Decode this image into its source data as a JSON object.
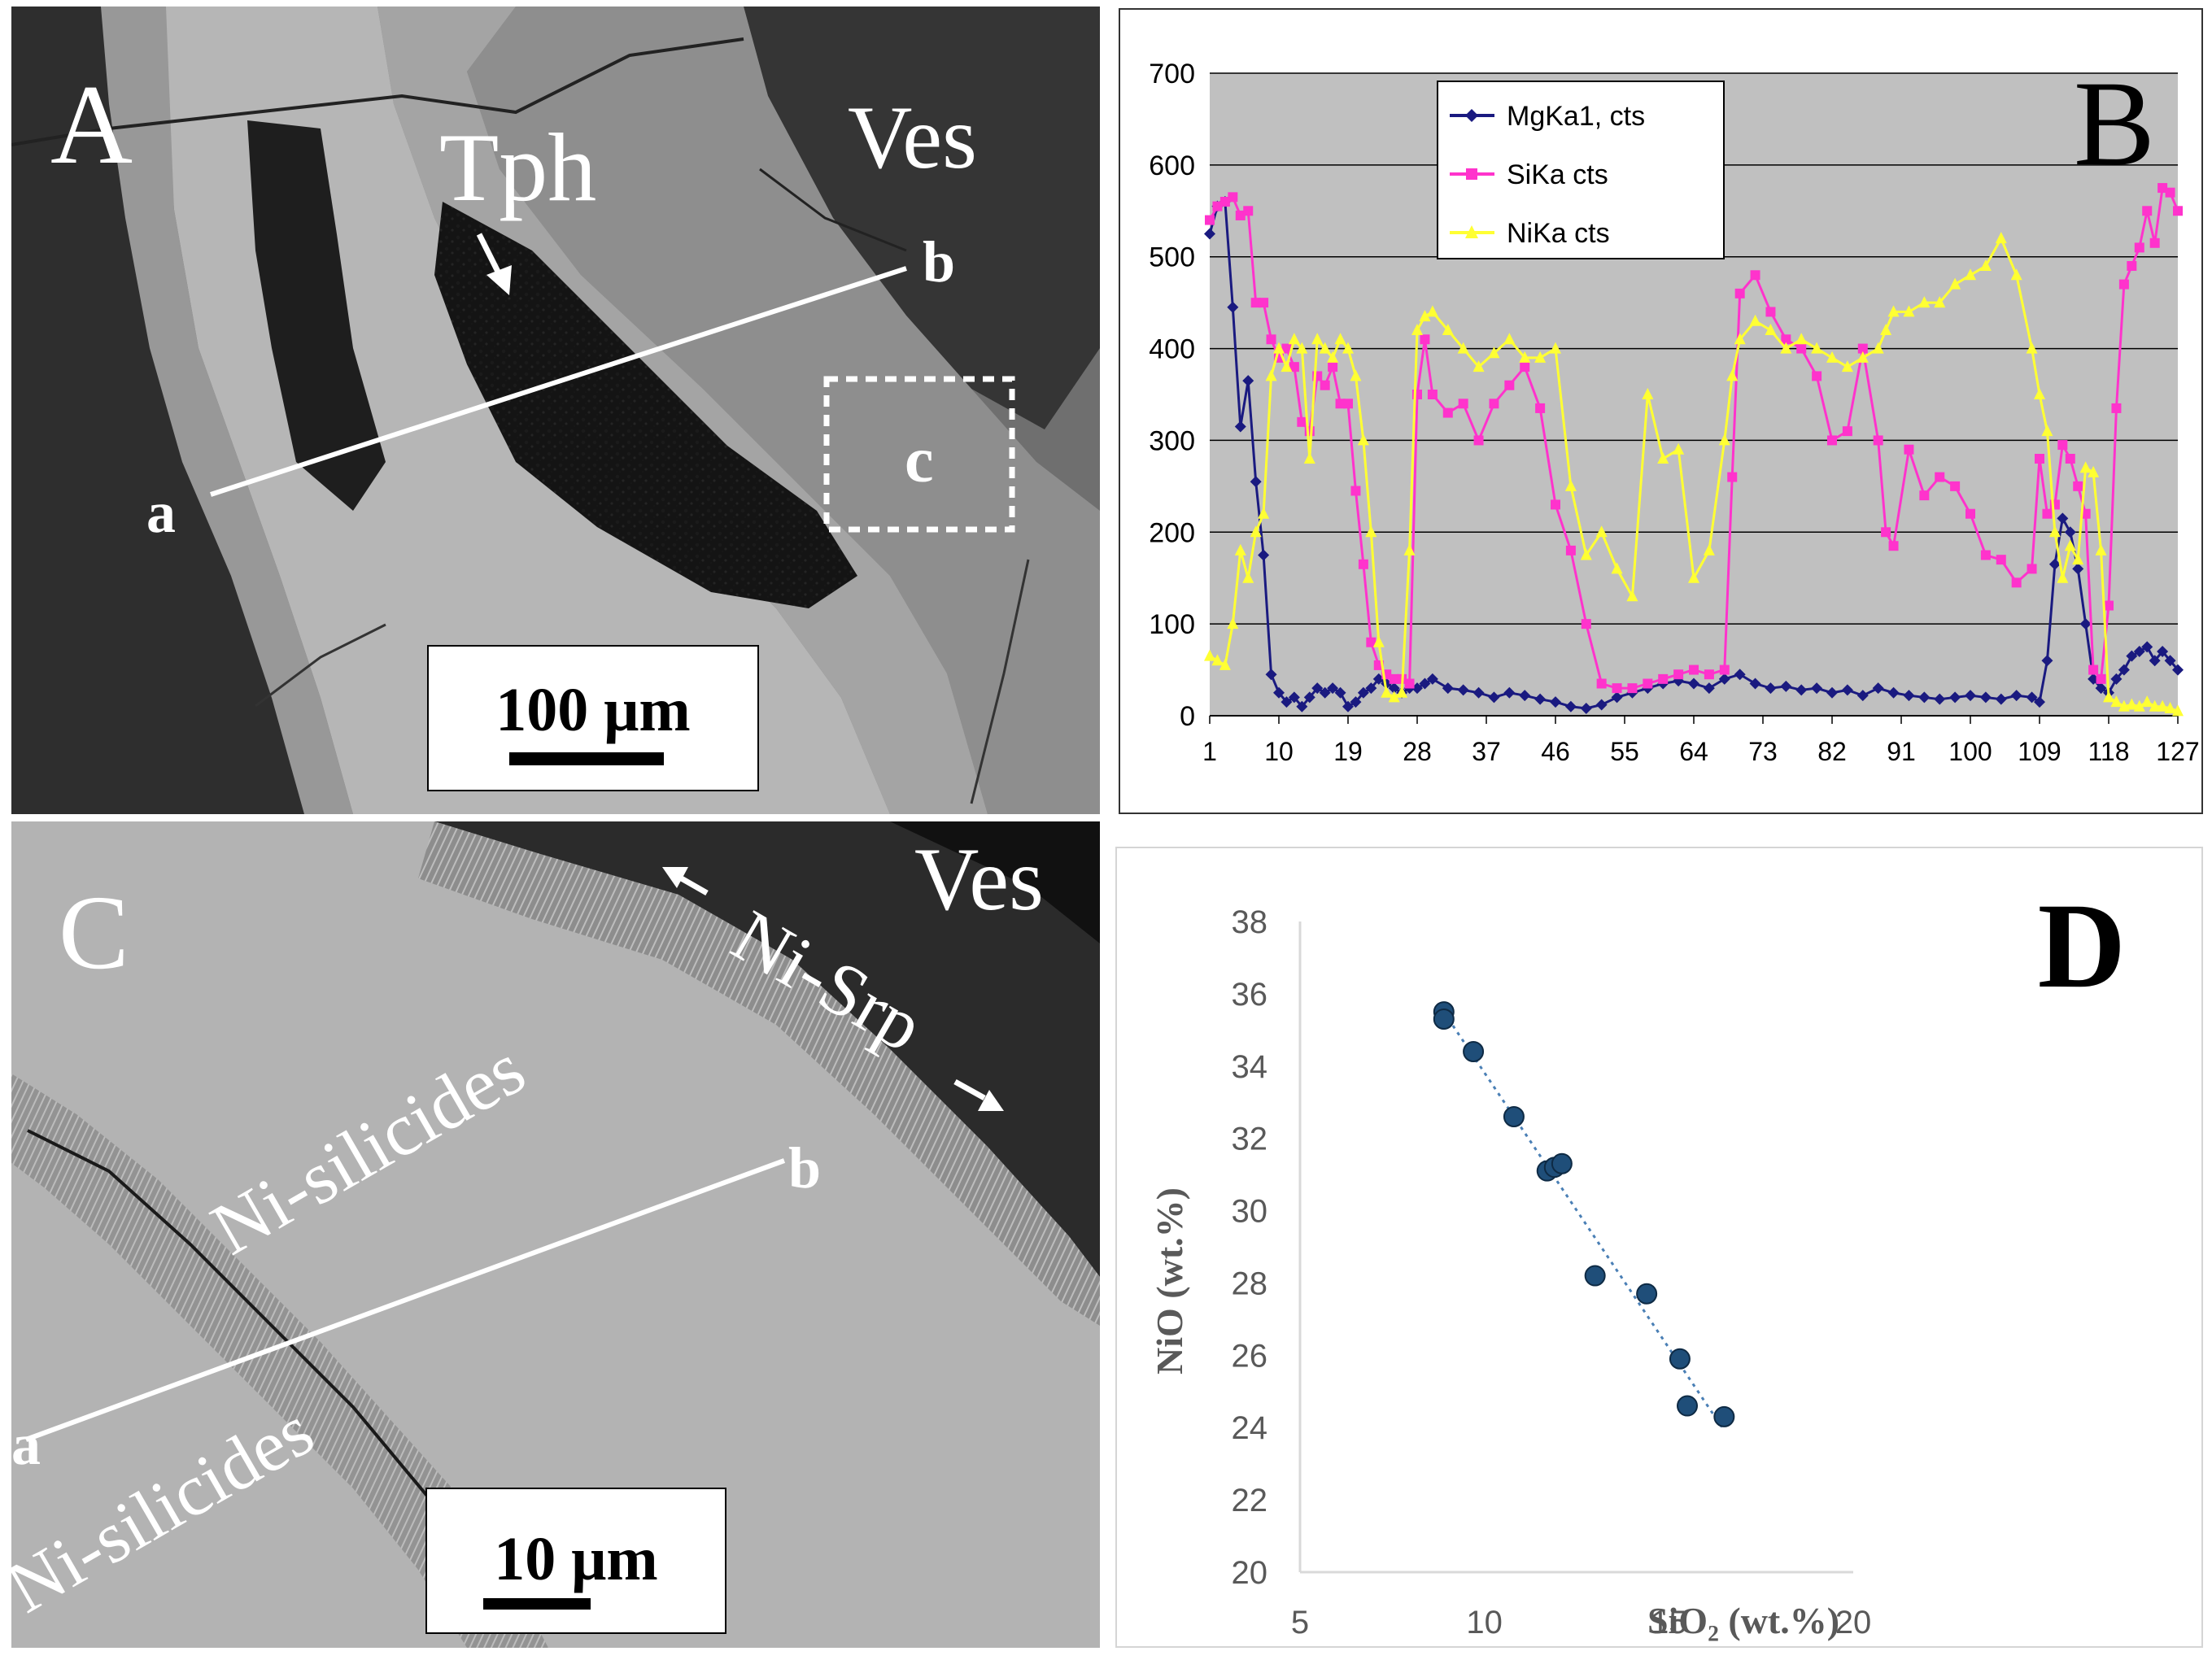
{
  "panel_a": {
    "letter": "A",
    "labels": {
      "tph": "Tph",
      "ves": "Ves",
      "a": "a",
      "b": "b",
      "c": "c"
    },
    "scale_bar": "100 μm"
  },
  "panel_c": {
    "letter": "C",
    "labels": {
      "ves": "Ves",
      "ni_srp": "Ni-Srp",
      "ni_silicides_upper": "Ni-silicides",
      "ni_silicides_lower": "Ni-silicides",
      "a": "a",
      "b": "b"
    },
    "scale_bar": "10 μm"
  },
  "colors": {
    "mg": "#1a1a80",
    "si": "#ff33cc",
    "ni": "#ffff33",
    "plot_bg": "#c0c0c0",
    "scatter_point": "#1f4e79",
    "trend": "#4a7fb5"
  },
  "chart_data": [
    {
      "panel": "B",
      "type": "line",
      "ylim": [
        0,
        700
      ],
      "yticks": [
        0,
        100,
        200,
        300,
        400,
        500,
        600,
        700
      ],
      "xlim": [
        1,
        127
      ],
      "xticks": [
        1,
        10,
        19,
        28,
        37,
        46,
        55,
        64,
        73,
        82,
        91,
        100,
        109,
        118,
        127
      ],
      "grid": true,
      "legend": "top-center",
      "series": [
        {
          "name": "MgKa1, cts",
          "color": "#1a1a80",
          "marker": "diamond",
          "x": [
            1,
            2,
            3,
            4,
            5,
            6,
            7,
            8,
            9,
            10,
            11,
            12,
            13,
            14,
            15,
            16,
            17,
            18,
            19,
            20,
            21,
            22,
            23,
            24,
            25,
            26,
            27,
            28,
            29,
            30,
            32,
            34,
            36,
            38,
            40,
            42,
            44,
            46,
            48,
            50,
            52,
            54,
            56,
            58,
            60,
            62,
            64,
            66,
            68,
            70,
            72,
            74,
            76,
            78,
            80,
            82,
            84,
            86,
            88,
            90,
            92,
            94,
            96,
            98,
            100,
            102,
            104,
            106,
            108,
            109,
            110,
            111,
            112,
            113,
            114,
            115,
            116,
            117,
            118,
            119,
            120,
            121,
            122,
            123,
            124,
            125,
            126,
            127
          ],
          "values": [
            525,
            555,
            560,
            445,
            315,
            365,
            255,
            175,
            45,
            25,
            15,
            20,
            10,
            20,
            30,
            25,
            30,
            25,
            10,
            15,
            25,
            30,
            40,
            35,
            30,
            25,
            30,
            30,
            35,
            40,
            30,
            28,
            25,
            20,
            25,
            22,
            18,
            15,
            10,
            8,
            12,
            20,
            25,
            30,
            35,
            38,
            35,
            30,
            40,
            45,
            35,
            30,
            32,
            28,
            30,
            25,
            28,
            22,
            30,
            25,
            22,
            20,
            18,
            20,
            22,
            20,
            18,
            22,
            20,
            15,
            60,
            165,
            215,
            200,
            160,
            100,
            40,
            30,
            25,
            40,
            50,
            65,
            70,
            75,
            60,
            70,
            60,
            50
          ]
        },
        {
          "name": "SiKa cts",
          "color": "#ff33cc",
          "marker": "square",
          "x": [
            1,
            2,
            3,
            4,
            5,
            6,
            7,
            8,
            9,
            10,
            11,
            12,
            13,
            14,
            15,
            16,
            17,
            18,
            19,
            20,
            21,
            22,
            23,
            24,
            25,
            26,
            27,
            28,
            29,
            30,
            32,
            34,
            36,
            38,
            40,
            42,
            44,
            46,
            48,
            50,
            52,
            54,
            56,
            58,
            60,
            62,
            64,
            66,
            68,
            69,
            70,
            72,
            74,
            76,
            78,
            80,
            82,
            84,
            86,
            88,
            89,
            90,
            92,
            94,
            96,
            98,
            100,
            102,
            104,
            106,
            108,
            109,
            110,
            111,
            112,
            113,
            114,
            115,
            116,
            117,
            118,
            119,
            120,
            121,
            122,
            123,
            124,
            125,
            126,
            127
          ],
          "values": [
            540,
            555,
            560,
            565,
            545,
            550,
            450,
            450,
            410,
            390,
            400,
            380,
            320,
            310,
            370,
            360,
            380,
            340,
            340,
            245,
            165,
            80,
            55,
            45,
            40,
            40,
            35,
            350,
            410,
            350,
            330,
            340,
            300,
            340,
            360,
            380,
            335,
            230,
            180,
            100,
            35,
            30,
            30,
            35,
            40,
            45,
            50,
            45,
            50,
            260,
            460,
            480,
            440,
            410,
            400,
            370,
            300,
            310,
            400,
            300,
            200,
            185,
            290,
            240,
            260,
            250,
            220,
            175,
            170,
            145,
            160,
            280,
            220,
            230,
            295,
            280,
            250,
            220,
            50,
            40,
            120,
            335,
            470,
            490,
            510,
            550,
            515,
            575,
            570,
            550
          ]
        },
        {
          "name": "NiKa cts",
          "color": "#ffff33",
          "marker": "triangle",
          "x": [
            1,
            2,
            3,
            4,
            5,
            6,
            7,
            8,
            9,
            10,
            11,
            12,
            13,
            14,
            15,
            16,
            17,
            18,
            19,
            20,
            21,
            22,
            23,
            24,
            25,
            26,
            27,
            28,
            29,
            30,
            32,
            34,
            36,
            38,
            40,
            42,
            44,
            46,
            48,
            50,
            52,
            54,
            56,
            58,
            60,
            62,
            64,
            66,
            68,
            69,
            70,
            72,
            74,
            76,
            78,
            80,
            82,
            84,
            86,
            88,
            89,
            90,
            92,
            94,
            96,
            98,
            100,
            102,
            104,
            106,
            108,
            109,
            110,
            111,
            112,
            113,
            114,
            115,
            116,
            117,
            118,
            119,
            120,
            121,
            122,
            123,
            124,
            125,
            126,
            127
          ],
          "values": [
            65,
            60,
            55,
            100,
            180,
            150,
            200,
            220,
            370,
            400,
            380,
            410,
            400,
            280,
            410,
            400,
            390,
            410,
            400,
            370,
            300,
            200,
            80,
            25,
            20,
            25,
            180,
            420,
            435,
            440,
            420,
            400,
            380,
            395,
            410,
            390,
            390,
            400,
            250,
            175,
            200,
            160,
            130,
            350,
            280,
            290,
            150,
            180,
            300,
            370,
            410,
            430,
            420,
            400,
            410,
            400,
            390,
            380,
            390,
            400,
            420,
            440,
            440,
            450,
            450,
            470,
            480,
            490,
            520,
            480,
            400,
            350,
            310,
            200,
            150,
            185,
            170,
            270,
            265,
            180,
            20,
            15,
            10,
            12,
            10,
            15,
            10,
            10,
            8,
            5
          ]
        }
      ]
    },
    {
      "panel": "D",
      "type": "scatter",
      "xlabel": "SiO₂ (wt.%)",
      "ylabel": "NiO (wt.%)",
      "xlim": [
        5,
        20
      ],
      "ylim": [
        20,
        38
      ],
      "xticks": [
        5,
        10,
        15,
        20
      ],
      "yticks": [
        20,
        22,
        24,
        26,
        28,
        30,
        32,
        34,
        36,
        38
      ],
      "trendline": true,
      "points": [
        {
          "x": 8.9,
          "y": 35.5
        },
        {
          "x": 8.9,
          "y": 35.3
        },
        {
          "x": 9.7,
          "y": 34.4
        },
        {
          "x": 10.8,
          "y": 32.6
        },
        {
          "x": 11.7,
          "y": 31.1
        },
        {
          "x": 11.9,
          "y": 31.2
        },
        {
          "x": 12.1,
          "y": 31.3
        },
        {
          "x": 13.0,
          "y": 28.2
        },
        {
          "x": 14.4,
          "y": 27.7
        },
        {
          "x": 15.3,
          "y": 25.9
        },
        {
          "x": 15.5,
          "y": 24.6
        },
        {
          "x": 16.5,
          "y": 24.3
        }
      ]
    }
  ]
}
